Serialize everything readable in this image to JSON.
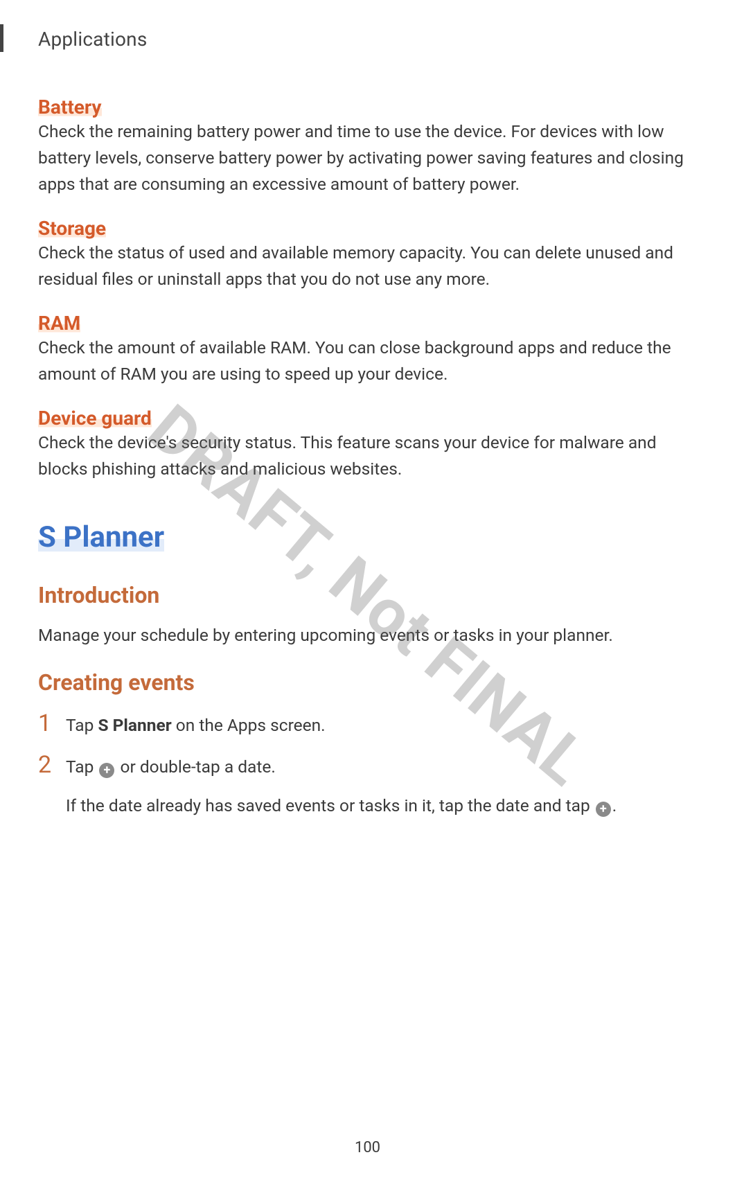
{
  "header": {
    "chapter": "Applications"
  },
  "sections": {
    "battery": {
      "title": "Battery",
      "body": "Check the remaining battery power and time to use the device. For devices with low battery levels, conserve battery power by activating power saving features and closing apps that are consuming an excessive amount of battery power."
    },
    "storage": {
      "title": "Storage",
      "body": "Check the status of used and available memory capacity. You can delete unused and residual files or uninstall apps that you do not use any more."
    },
    "ram": {
      "title": "RAM",
      "body": "Check the amount of available RAM. You can close background apps and reduce the amount of RAM you are using to speed up your device."
    },
    "deviceGuard": {
      "title": "Device guard",
      "body": "Check the device's security status. This feature scans your device for malware and blocks phishing attacks and malicious websites."
    }
  },
  "splanner": {
    "title": "S Planner",
    "intro": {
      "heading": "Introduction",
      "body": "Manage your schedule by entering upcoming events or tasks in your planner."
    },
    "creating": {
      "heading": "Creating events",
      "steps": {
        "s1_num": "1",
        "s1_pre": "Tap ",
        "s1_bold": "S Planner",
        "s1_post": " on the Apps screen.",
        "s2_num": "2",
        "s2_pre": "Tap ",
        "s2_post": " or double-tap a date.",
        "s2_line2_pre": "If the date already has saved events or tasks in it, tap the date and tap ",
        "s2_line2_post": "."
      }
    }
  },
  "watermark": "DRAFT, Not FINAL",
  "pageNumber": "100",
  "colors": {
    "orange": "#d45a2a",
    "brown": "#c46a3a",
    "blue": "#3c72c6",
    "text": "#3a3a3a",
    "iconBg": "#8a8a8a"
  },
  "typography": {
    "body_fontsize": 24.5,
    "h3_fontsize": 28,
    "h2_fontsize": 32,
    "h1_fontsize": 42,
    "stepnum_fontsize": 34,
    "chapter_fontsize": 28,
    "watermark_fontsize": 95,
    "watermark_rotate_deg": 40
  }
}
